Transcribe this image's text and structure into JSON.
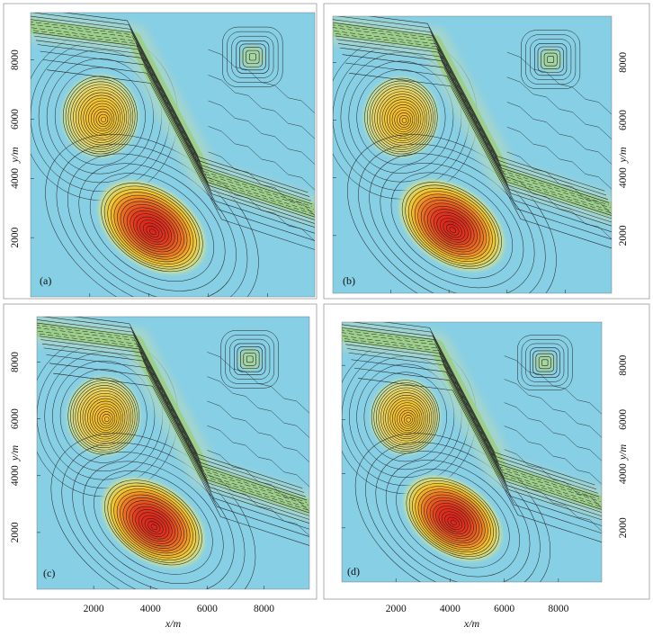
{
  "figure": {
    "panel_labels": [
      "(a)",
      "(b)",
      "(c)",
      "(d)"
    ],
    "x_axis_label": "x/m",
    "y_axis_label": "y/m",
    "x_tick_labels": [
      "2000",
      "4000",
      "6000",
      "8000"
    ],
    "y_tick_labels": [
      "2000",
      "4000",
      "6000",
      "8000"
    ]
  },
  "colors": {
    "background": "#87cfe5",
    "band": "#9ccf8c",
    "yellow_peak": "#f2c12b",
    "red_peak": "#e0251c",
    "contour": "#222222"
  },
  "chart_data": {
    "type": "heatmap",
    "panels": 4,
    "panel_names": [
      "(a)",
      "(b)",
      "(c)",
      "(d)"
    ],
    "x_range_m": [
      0,
      9600
    ],
    "y_range_m": [
      0,
      9600
    ],
    "x_ticks": [
      2000,
      4000,
      6000,
      8000
    ],
    "y_ticks": [
      2000,
      4000,
      6000,
      8000
    ],
    "grid": false,
    "features": [
      {
        "kind": "round peak",
        "color": "yellow",
        "center_m": [
          2350,
          6100
        ],
        "radius_m": [
          1250,
          1350
        ]
      },
      {
        "kind": "elongated peak",
        "color": "red",
        "center_m": [
          4100,
          2350
        ],
        "radius_m": [
          1900,
          1250
        ],
        "rotation_deg": 35
      },
      {
        "kind": "linear band",
        "color": "green",
        "path_m": [
          [
            0,
            9150
          ],
          [
            3500,
            8700
          ],
          [
            5900,
            4100
          ],
          [
            9600,
            2900
          ]
        ]
      },
      {
        "kind": "small square peak",
        "color": "green",
        "center_m": [
          7500,
          8100
        ],
        "radius_m": [
          550,
          550
        ]
      }
    ]
  }
}
